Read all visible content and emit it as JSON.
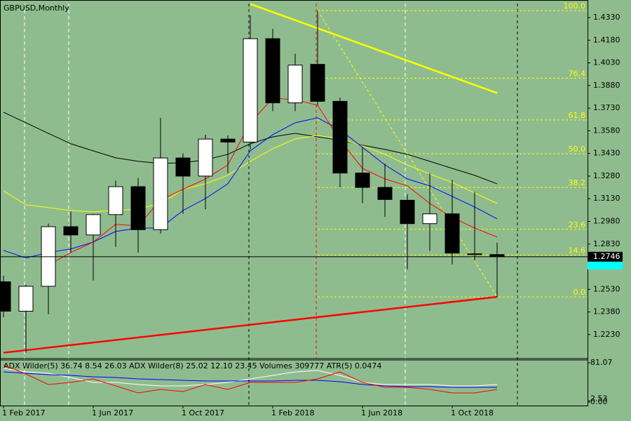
{
  "chart_data": {
    "type": "candlestick",
    "title": "GBPUSD,Monthly",
    "categories": [
      "1 Feb 2017",
      null,
      null,
      null,
      "1 Jun 2017",
      null,
      null,
      null,
      "1 Oct 2017",
      null,
      null,
      null,
      "1 Feb 2018",
      null,
      null,
      null,
      "1 Jun 2018",
      null,
      null,
      null,
      "1 Oct 2018",
      null,
      null
    ],
    "open": [
      1.258,
      1.2385,
      1.255,
      1.2945,
      1.289,
      1.3025,
      1.321,
      1.2925,
      1.34,
      1.328,
      1.3525,
      1.3505,
      1.419,
      1.3765,
      1.402,
      1.3775,
      1.33,
      1.3205,
      1.312,
      1.2965,
      1.303,
      1.2765,
      1.276
    ],
    "high": [
      1.262,
      1.256,
      1.2965,
      1.3045,
      1.303,
      1.325,
      1.3267,
      1.3666,
      1.343,
      1.3554,
      1.355,
      1.4345,
      1.4255,
      1.409,
      1.4376,
      1.38,
      1.347,
      1.3362,
      1.316,
      1.3298,
      1.3255,
      1.3175,
      1.284
    ],
    "low": [
      1.2345,
      1.211,
      1.2365,
      1.2775,
      1.2588,
      1.2811,
      1.2774,
      1.2899,
      1.303,
      1.306,
      1.33,
      1.3458,
      1.371,
      1.371,
      1.375,
      1.3205,
      1.31,
      1.301,
      1.2662,
      1.2785,
      1.2695,
      1.272,
      1.248
    ],
    "close": [
      1.2385,
      1.255,
      1.2945,
      1.289,
      1.3025,
      1.321,
      1.2925,
      1.34,
      1.328,
      1.3525,
      1.3505,
      1.419,
      1.3765,
      1.4015,
      1.3775,
      1.33,
      1.3205,
      1.3125,
      1.2965,
      1.303,
      1.277,
      1.276,
      1.2746
    ],
    "up_color": "#ffffff",
    "down_color": "#000000",
    "background": "#8fbc8f",
    "ylim": [
      1.2076,
      1.4423
    ],
    "yticks": [
      {
        "value": 1.433,
        "label": "1.4330"
      },
      {
        "value": 1.418,
        "label": "1.4180"
      },
      {
        "value": 1.403,
        "label": "1.4030"
      },
      {
        "value": 1.388,
        "label": "1.3880"
      },
      {
        "value": 1.373,
        "label": "1.3730"
      },
      {
        "value": 1.358,
        "label": "1.3580"
      },
      {
        "value": 1.343,
        "label": "1.3430"
      },
      {
        "value": 1.328,
        "label": "1.3280"
      },
      {
        "value": 1.313,
        "label": "1.3130"
      },
      {
        "value": 1.298,
        "label": "1.2980"
      },
      {
        "value": 1.283,
        "label": "1.2830"
      },
      {
        "value": 1.253,
        "label": "1.2530"
      },
      {
        "value": 1.238,
        "label": "1.2380"
      },
      {
        "value": 1.223,
        "label": "1.2230"
      }
    ],
    "current_price": {
      "value": 1.2746,
      "label": "1.2746"
    },
    "lines": [
      {
        "color": "#000000",
        "values": [
          1.3703,
          1.3633,
          1.3563,
          1.3494,
          1.3447,
          1.3401,
          1.3378,
          1.3364,
          1.3368,
          1.3387,
          1.3424,
          1.3494,
          1.354,
          1.3563,
          1.354,
          1.3517,
          1.3484,
          1.3457,
          1.3424,
          1.3378,
          1.3331,
          1.3285,
          1.3229
        ]
      },
      {
        "color": "#ffff00",
        "values": [
          1.3182,
          1.309,
          1.3071,
          1.3052,
          1.3043,
          1.3052,
          1.3062,
          1.3099,
          1.3192,
          1.3229,
          1.3285,
          1.3378,
          1.3461,
          1.3526,
          1.3549,
          1.3526,
          1.348,
          1.3424,
          1.3354,
          1.3294,
          1.3238,
          1.3168,
          1.3099
        ]
      },
      {
        "color": "#0000ff",
        "values": [
          1.2788,
          1.2737,
          1.2774,
          1.2797,
          1.2843,
          1.2913,
          1.2936,
          1.2936,
          1.3052,
          1.3131,
          1.3229,
          1.3447,
          1.3554,
          1.3633,
          1.3666,
          1.3587,
          1.347,
          1.3354,
          1.3261,
          1.3215,
          1.3145,
          1.3075,
          1.2997
        ]
      },
      {
        "color": "#ff0000",
        "values": [
          null,
          null,
          1.269,
          1.2774,
          1.2843,
          1.296,
          1.295,
          1.3122,
          1.3192,
          1.3261,
          1.3354,
          1.3633,
          1.3796,
          1.3786,
          1.3749,
          1.3517,
          1.3331,
          1.3261,
          1.3215,
          1.3099,
          1.3006,
          1.2936,
          1.2876
        ]
      }
    ],
    "trendlines": [
      {
        "color": "#ffff00",
        "x": [
          11,
          22
        ],
        "y": [
          1.442,
          1.383
        ]
      },
      {
        "color": "#ff0000",
        "x": [
          0,
          22
        ],
        "y": [
          1.211,
          1.248
        ]
      }
    ],
    "fibonacci": {
      "color": "#ffff00",
      "x": [
        14,
        22
      ],
      "high": 1.4376,
      "low": 1.248,
      "levels": [
        {
          "value": 100,
          "label": "100.0"
        },
        {
          "value": 76.4,
          "label": "76.4"
        },
        {
          "value": 61.8,
          "label": "61.8"
        },
        {
          "value": 50,
          "label": "50.0"
        },
        {
          "value": 38.2,
          "label": "38.2"
        },
        {
          "value": 23.6,
          "label": "23.6"
        },
        {
          "value": 14.6,
          "label": "14.6"
        },
        {
          "value": 0,
          "label": "0.0"
        }
      ]
    },
    "indicator": {
      "label": "ADX Wilder(5) 36.74 8.54 26.03 ADX Wilder(8) 25.02 12.10 23.45 Volumes 309777 ATR(5) 0.0474",
      "ylim": [
        0,
        81.07
      ],
      "yticks": [
        {
          "value": 81.07,
          "label": "81.07"
        },
        {
          "value": 2.53,
          "label": "2.53"
        },
        {
          "value": 0,
          "label": "0.00"
        }
      ],
      "series": [
        {
          "color": "#ffffff",
          "values": [
            69.5,
            62.3,
            59.4,
            50.7,
            40.5,
            40.5,
            36.2,
            33.3,
            33.3,
            36.2,
            40.5,
            47.8,
            55.0,
            62.3,
            65.1,
            55.0,
            40.5,
            36.2,
            36.2,
            36.2,
            33.3,
            33.3,
            36.2
          ]
        },
        {
          "color": "#0000ff",
          "values": [
            62.3,
            59.4,
            56.5,
            55.0,
            52.1,
            50.7,
            47.8,
            46.3,
            44.9,
            43.4,
            43.4,
            43.4,
            43.4,
            44.9,
            44.9,
            42.0,
            36.2,
            33.3,
            31.8,
            31.8,
            30.4,
            30.4,
            30.4
          ]
        },
        {
          "color": "#ff0000",
          "values": [
            76.7,
            57.9,
            36.2,
            40.5,
            47.8,
            33.3,
            18.8,
            26.1,
            21.7,
            36.2,
            26.1,
            40.5,
            40.5,
            40.5,
            47.8,
            62.3,
            40.5,
            30.4,
            30.4,
            26.1,
            18.8,
            18.8,
            26.1
          ]
        }
      ]
    }
  }
}
